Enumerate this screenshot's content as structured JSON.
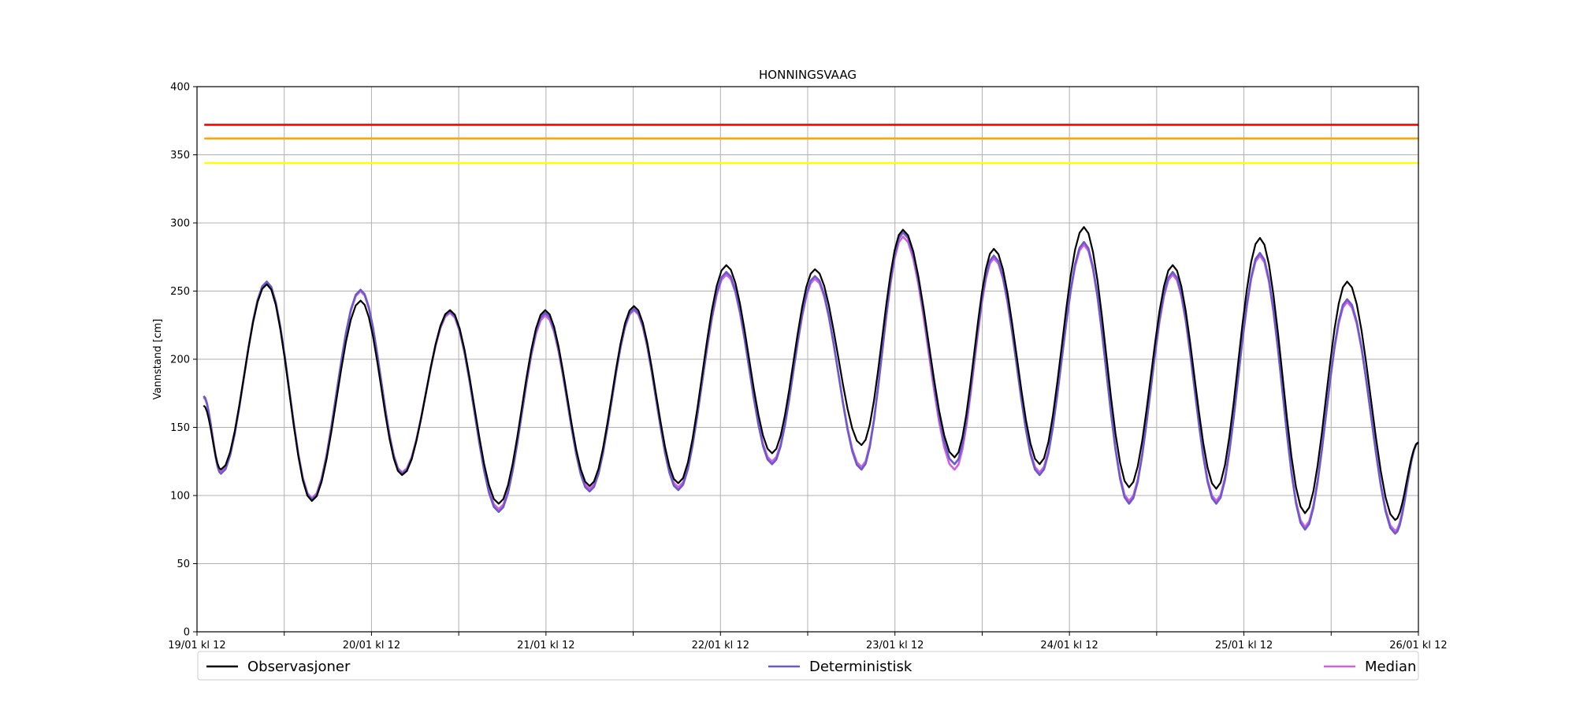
{
  "chart_data": {
    "type": "line",
    "title": "HONNINGSVAAG",
    "ylabel": "Vannstand [cm]",
    "xlabel": "",
    "ylim": [
      0,
      400
    ],
    "yticks": [
      0,
      50,
      100,
      150,
      200,
      250,
      300,
      350,
      400
    ],
    "xlim": [
      0,
      168
    ],
    "xticks": [
      {
        "x": 0,
        "label": "19/01 kl 12"
      },
      {
        "x": 12,
        "label": ""
      },
      {
        "x": 24,
        "label": "20/01 kl 12"
      },
      {
        "x": 36,
        "label": ""
      },
      {
        "x": 48,
        "label": "21/01 kl 12"
      },
      {
        "x": 60,
        "label": ""
      },
      {
        "x": 72,
        "label": "22/01 kl 12"
      },
      {
        "x": 84,
        "label": ""
      },
      {
        "x": 96,
        "label": "23/01 kl 12"
      },
      {
        "x": 108,
        "label": ""
      },
      {
        "x": 120,
        "label": "24/01 kl 12"
      },
      {
        "x": 132,
        "label": ""
      },
      {
        "x": 144,
        "label": "25/01 kl 12"
      },
      {
        "x": 156,
        "label": ""
      },
      {
        "x": 168,
        "label": "26/01 kl 12"
      }
    ],
    "grid": true,
    "legend_position": "bottom",
    "thresholds": [
      {
        "value": 372,
        "color": "#ff0000"
      },
      {
        "value": 362,
        "color": "#ffa500"
      },
      {
        "value": 344,
        "color": "#ffff00"
      }
    ],
    "extremes": [
      {
        "x": 0.9,
        "obs": 166,
        "det": 173,
        "med": 172
      },
      {
        "x": 3.3,
        "obs": 119,
        "det": 116,
        "med": 118
      },
      {
        "x": 9.6,
        "obs": 255,
        "det": 257,
        "med": 256
      },
      {
        "x": 15.8,
        "obs": 96,
        "det": 97,
        "med": 98
      },
      {
        "x": 22.5,
        "obs": 243,
        "det": 251,
        "med": 250
      },
      {
        "x": 28.2,
        "obs": 115,
        "det": 116,
        "med": 117
      },
      {
        "x": 34.8,
        "obs": 236,
        "det": 235,
        "med": 234
      },
      {
        "x": 41.5,
        "obs": 94,
        "det": 88,
        "med": 90
      },
      {
        "x": 47.9,
        "obs": 236,
        "det": 234,
        "med": 232
      },
      {
        "x": 54.0,
        "obs": 107,
        "det": 103,
        "med": 105
      },
      {
        "x": 60.1,
        "obs": 239,
        "det": 237,
        "med": 236
      },
      {
        "x": 66.2,
        "obs": 109,
        "det": 104,
        "med": 106
      },
      {
        "x": 72.8,
        "obs": 269,
        "det": 264,
        "med": 262
      },
      {
        "x": 79.1,
        "obs": 131,
        "det": 123,
        "med": 125
      },
      {
        "x": 85.0,
        "obs": 266,
        "det": 261,
        "med": 259
      },
      {
        "x": 91.4,
        "obs": 137,
        "det": 119,
        "med": 121
      },
      {
        "x": 97.1,
        "obs": 295,
        "det": 293,
        "med": 290
      },
      {
        "x": 104.2,
        "obs": 128,
        "det": 123,
        "med": 119
      },
      {
        "x": 109.6,
        "obs": 281,
        "det": 276,
        "med": 274
      },
      {
        "x": 115.9,
        "obs": 123,
        "det": 115,
        "med": 117
      },
      {
        "x": 122.0,
        "obs": 297,
        "det": 286,
        "med": 284
      },
      {
        "x": 128.2,
        "obs": 106,
        "det": 94,
        "med": 96
      },
      {
        "x": 134.2,
        "obs": 269,
        "det": 264,
        "med": 262
      },
      {
        "x": 140.2,
        "obs": 105,
        "det": 94,
        "med": 96
      },
      {
        "x": 146.2,
        "obs": 289,
        "det": 278,
        "med": 276
      },
      {
        "x": 152.4,
        "obs": 87,
        "det": 75,
        "med": 77
      },
      {
        "x": 158.2,
        "obs": 257,
        "det": 244,
        "med": 242
      },
      {
        "x": 164.8,
        "obs": 82,
        "det": 72,
        "med": 74
      },
      {
        "x": 168.0,
        "obs": 139,
        "det": 139,
        "med": 139
      }
    ],
    "series": [
      {
        "name": "Observasjoner",
        "color": "#000000",
        "key": "obs"
      },
      {
        "name": "Deterministisk",
        "color": "#6a5acd",
        "key": "det"
      },
      {
        "name": "Median",
        "color": "#d060e0",
        "key": "med"
      }
    ]
  }
}
